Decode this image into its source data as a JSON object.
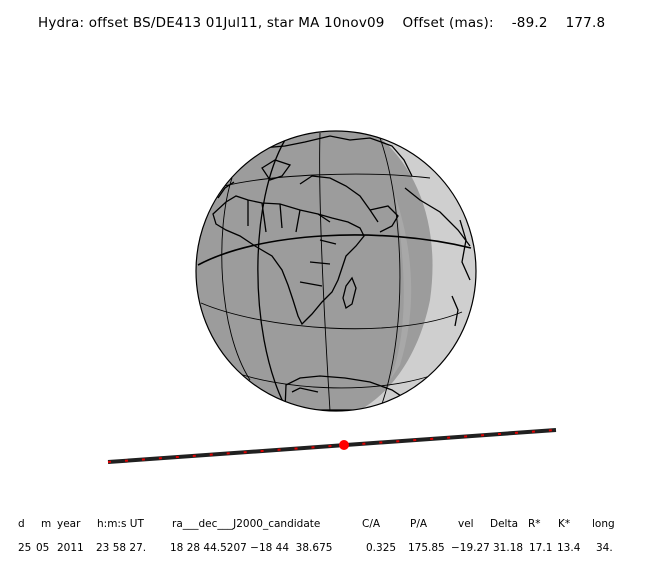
{
  "title": "Hydra: offset BS/DE413 01Jul11, star MA 10nov09    Offset (mas):    -89.2    177.8",
  "colors": {
    "globe": "#9c9c9c",
    "twilight": "#cfcfcf",
    "outline": "#000000",
    "track": "#202020",
    "track_dots": "#e00000",
    "center_point": "#ff0000"
  },
  "table": {
    "headers": [
      "d",
      "m",
      "year",
      "h:m:s UT",
      "ra___dec___J2000_candidate",
      "C/A",
      "P/A",
      "vel",
      "Delta",
      "R*",
      "K*",
      "long"
    ],
    "values": [
      "25",
      "05",
      "2011",
      "23 58 27.",
      "18 28 44.5207 −18 44  38.675",
      "0.325",
      "175.85",
      "−19.27",
      "31.18",
      "17.1",
      "13.4",
      "34."
    ]
  }
}
